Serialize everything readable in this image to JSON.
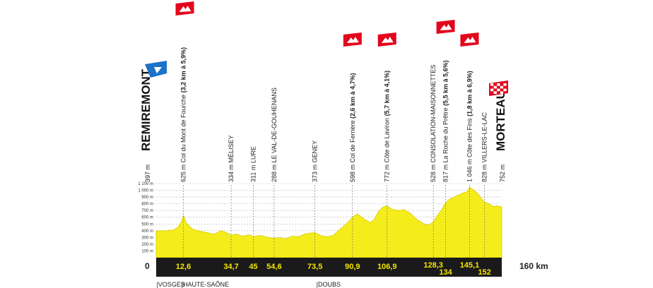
{
  "chart_data": {
    "type": "area",
    "title": "",
    "xlabel": "",
    "ylabel": "",
    "y_unit_ticks": [
      "100 m",
      "200 m",
      "300 m",
      "400 m",
      "500 m",
      "600 m",
      "700 m",
      "800 m",
      "900 m",
      "1 000 m",
      "1 100 m"
    ],
    "xlim": [
      0,
      160
    ],
    "ylim": [
      0,
      1100
    ],
    "start_km_label": "0",
    "end_km_label": "160 km",
    "start": {
      "name": "REMIREMONT",
      "altitude": "397 m"
    },
    "finish": {
      "name": "MORTEAU",
      "altitude": "752 m"
    },
    "profile": {
      "x": [
        0,
        4,
        8,
        10,
        11.5,
        12.6,
        14,
        17,
        22,
        27,
        30,
        32,
        34.7,
        37,
        40,
        43,
        45,
        48,
        52,
        54.6,
        57,
        60,
        63,
        66,
        68,
        70,
        73.5,
        76,
        79,
        82,
        85,
        88,
        90.9,
        93,
        96,
        99,
        101,
        103,
        105,
        106.9,
        109,
        112,
        115,
        118,
        121,
        124,
        126,
        128.3,
        130,
        132,
        134,
        136,
        138,
        140,
        142,
        144,
        145.1,
        147,
        149,
        150.5,
        152,
        154,
        156,
        158,
        160
      ],
      "y": [
        397,
        400,
        410,
        450,
        520,
        625,
        510,
        420,
        380,
        350,
        400,
        380,
        334,
        350,
        320,
        340,
        311,
        330,
        300,
        288,
        300,
        280,
        320,
        310,
        340,
        360,
        373,
        330,
        310,
        330,
        420,
        500,
        598,
        650,
        580,
        520,
        570,
        690,
        750,
        772,
        720,
        700,
        710,
        650,
        560,
        500,
        480,
        528,
        620,
        700,
        817,
        870,
        900,
        930,
        960,
        980,
        1046,
        1000,
        950,
        880,
        828,
        800,
        760,
        770,
        752
      ]
    },
    "waypoints": [
      {
        "km": 0,
        "km_label": "0",
        "altitude": "397 m",
        "name": "REMIREMONT",
        "climb_detail": "",
        "kind": "start"
      },
      {
        "km": 12.6,
        "km_label": "12,6",
        "altitude": "625 m",
        "name": "Col du Mont de Fourche",
        "climb_detail": "(3,2 km à 5,9%)",
        "kind": "climb"
      },
      {
        "km": 34.7,
        "km_label": "34,7",
        "altitude": "334 m",
        "name": "MÉLISEY",
        "climb_detail": "",
        "kind": "town"
      },
      {
        "km": 45,
        "km_label": "45",
        "altitude": "311 m",
        "name": "LURE",
        "climb_detail": "",
        "kind": "town"
      },
      {
        "km": 54.6,
        "km_label": "54,6",
        "altitude": "288 m",
        "name": "LE VAL-DE-GOUHENANS",
        "climb_detail": "",
        "kind": "town"
      },
      {
        "km": 73.5,
        "km_label": "73,5",
        "altitude": "373 m",
        "name": "GENEY",
        "climb_detail": "",
        "kind": "town"
      },
      {
        "km": 90.9,
        "km_label": "90,9",
        "altitude": "598 m",
        "name": "Col de Ferrière",
        "climb_detail": "(2,6 km à 4,7%)",
        "kind": "climb"
      },
      {
        "km": 106.9,
        "km_label": "106,9",
        "altitude": "772 m",
        "name": "Côte de Laviron",
        "climb_detail": "(5,7 km à 4,1%)",
        "kind": "climb"
      },
      {
        "km": 128.3,
        "km_label": "128,3",
        "altitude": "528 m",
        "name": "CONSOLATION-MAISONNETTES",
        "climb_detail": "",
        "kind": "town"
      },
      {
        "km": 134,
        "km_label": "134",
        "altitude": "817 m",
        "name": "La Roche du Prêtre",
        "climb_detail": "(5,5 km à 5,6%)",
        "kind": "climb"
      },
      {
        "km": 145.1,
        "km_label": "145,1",
        "altitude": "1 046 m",
        "name": "Côte des Fins",
        "climb_detail": "(1,8 km à 6,9%)",
        "kind": "climb"
      },
      {
        "km": 152,
        "km_label": "152",
        "altitude": "828 m",
        "name": "VILLERS-LE-LAC",
        "climb_detail": "",
        "kind": "town"
      },
      {
        "km": 160,
        "km_label": "",
        "altitude": "752 m",
        "name": "MORTEAU",
        "climb_detail": "",
        "kind": "finish"
      }
    ],
    "regions": [
      {
        "text": "|VOSGES",
        "km": -0.5
      },
      {
        "text": "|HAUTE-SAÔNE",
        "km": 11
      },
      {
        "text": "|DOUBS",
        "km": 73.5
      }
    ],
    "colors": {
      "fill": "#f5ec1b",
      "band": "#1a1a1a",
      "km_text": "#f5e600",
      "climb_flag": "#e3051b",
      "start_flag": "#1b72c9",
      "grid": "#b5b5b5"
    }
  }
}
